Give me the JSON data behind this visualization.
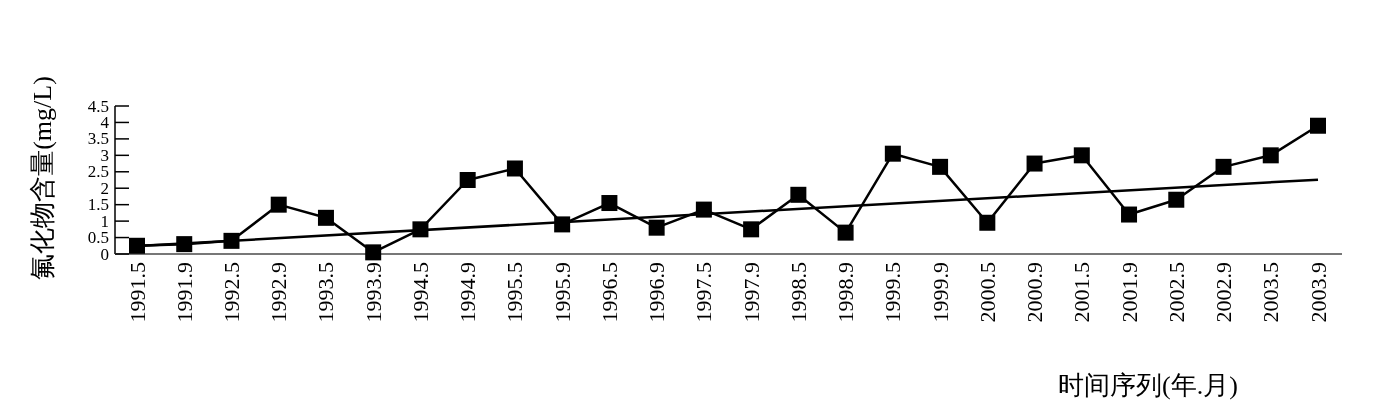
{
  "chart_data": {
    "type": "line",
    "xlabel": "时间序列(年.月)",
    "ylabel": "氟化物含量(mg/L)",
    "categories": [
      "1991.5",
      "1991.9",
      "1992.5",
      "1992.9",
      "1993.5",
      "1993.9",
      "1994.5",
      "1994.9",
      "1995.5",
      "1995.9",
      "1996.5",
      "1996.9",
      "1997.5",
      "1997.9",
      "1998.5",
      "1998.9",
      "1999.5",
      "1999.9",
      "2000.5",
      "2000.9",
      "2001.5",
      "2001.9",
      "2002.5",
      "2002.9",
      "2003.5",
      "2003.9"
    ],
    "series": [
      {
        "color": "#000000",
        "marker": "square",
        "values": [
          0.25,
          0.3,
          0.4,
          1.5,
          1.1,
          0.05,
          0.75,
          2.25,
          2.6,
          0.9,
          1.55,
          0.8,
          1.35,
          0.75,
          1.8,
          0.65,
          3.05,
          2.65,
          0.95,
          2.75,
          3.0,
          1.2,
          1.65,
          2.65,
          3.0,
          3.9
        ]
      },
      {
        "type": "line",
        "color": "#000000",
        "marker": "none",
        "x": [
          "1991.5",
          "2003.9"
        ],
        "values": [
          0.24,
          2.26
        ]
      }
    ],
    "ylim": [
      0,
      4.5
    ],
    "yticks": [
      0,
      0.5,
      1,
      1.5,
      2,
      2.5,
      3,
      3.5,
      4,
      4.5
    ]
  }
}
